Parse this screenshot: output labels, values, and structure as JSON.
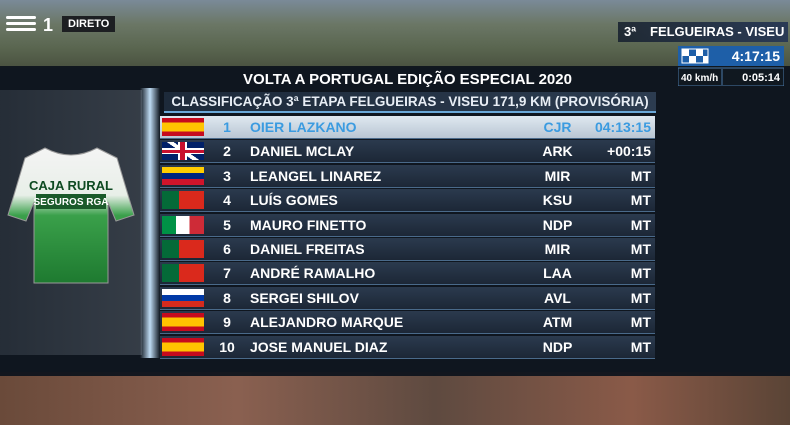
{
  "header": {
    "channel": "1",
    "live": "DIRETO",
    "stage_number": "3ª",
    "stage_route": "FELGUEIRAS - VISEU",
    "race_time": "4:17:15",
    "speed": "40 km/h",
    "gap_time": "0:05:14"
  },
  "title": "VOLTA A PORTUGAL EDIÇÃO ESPECIAL 2020",
  "subtitle": "CLASSIFICAÇÃO 3ª ETAPA FELGUEIRAS - VISEU  171,9 KM (PROVISÓRIA)",
  "jersey": {
    "line1": "CAJA RURAL",
    "line2": "SEGUROS RGA"
  },
  "table": {
    "rows": [
      [
        1,
        "OIER LAZKANO",
        "CJR",
        "04:13:15"
      ],
      [
        2,
        "DANIEL MCLAY",
        "ARK",
        "+00:15"
      ],
      [
        3,
        "LEANGEL LINAREZ",
        "MIR",
        "MT"
      ],
      [
        4,
        "LUÍS GOMES",
        "KSU",
        "MT"
      ],
      [
        5,
        "MAURO FINETTO",
        "NDP",
        "MT"
      ],
      [
        6,
        "DANIEL FREITAS",
        "MIR",
        "MT"
      ],
      [
        7,
        "ANDRÉ RAMALHO",
        "LAA",
        "MT"
      ],
      [
        8,
        "SERGEI SHILOV",
        "AVL",
        "MT"
      ],
      [
        9,
        "ALEJANDRO MARQUE",
        "ATM",
        "MT"
      ],
      [
        10,
        "JOSE MANUEL DIAZ",
        "NDP",
        "MT"
      ]
    ]
  }
}
